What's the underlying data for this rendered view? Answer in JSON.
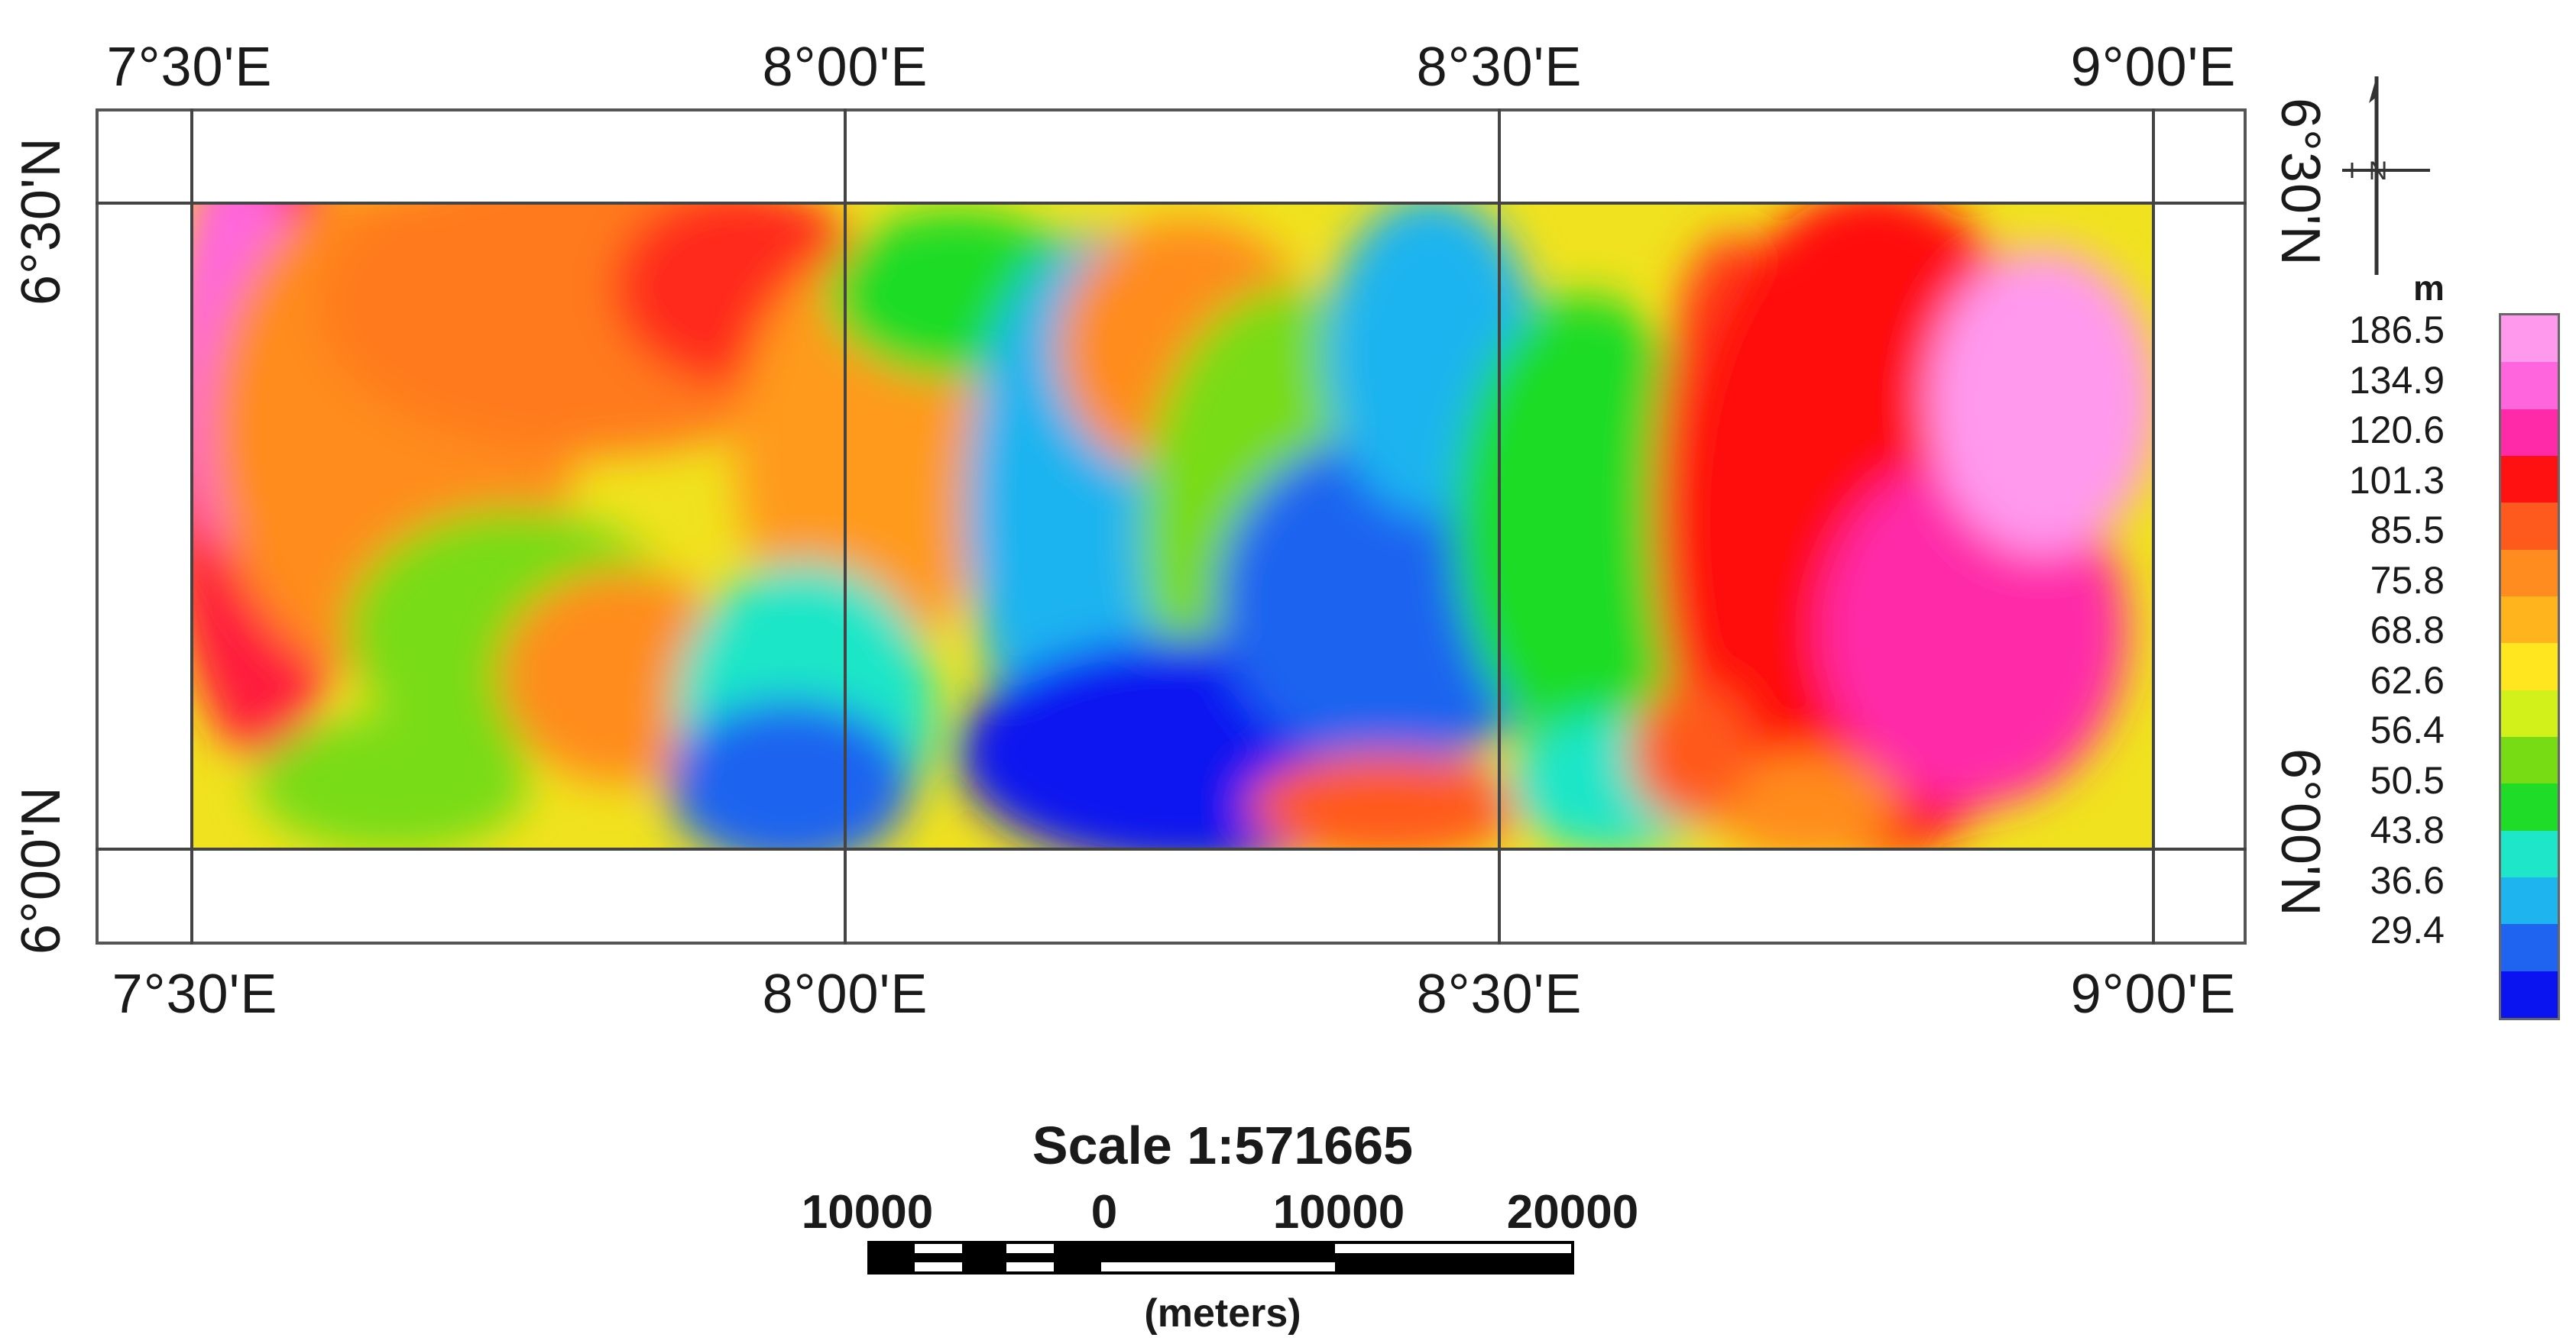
{
  "map": {
    "lon_labels": [
      "7°30'E",
      "8°00'E",
      "8°30'E",
      "9°00'E"
    ],
    "lat_labels": [
      "6°30'N",
      "6°00'N"
    ]
  },
  "north_arrow": {
    "label": "N"
  },
  "legend": {
    "unit": "m",
    "values": [
      "186.5",
      "134.9",
      "120.6",
      "101.3",
      "85.5",
      "75.8",
      "68.8",
      "62.6",
      "56.4",
      "50.5",
      "43.8",
      "36.6",
      "29.4"
    ],
    "colors": [
      "#ff99ee",
      "#ff66dd",
      "#ff2aa8",
      "#ff1111",
      "#ff5a1e",
      "#ff8c1e",
      "#ffb41e",
      "#ffe61e",
      "#d2f019",
      "#78dc14",
      "#1edc28",
      "#1ee6c8",
      "#1eb4f0",
      "#1e64f0",
      "#0a14f0"
    ]
  },
  "scale": {
    "title": "Scale 1:571665",
    "labels": [
      "10000",
      "0",
      "10000",
      "20000"
    ],
    "units": "(meters)"
  }
}
